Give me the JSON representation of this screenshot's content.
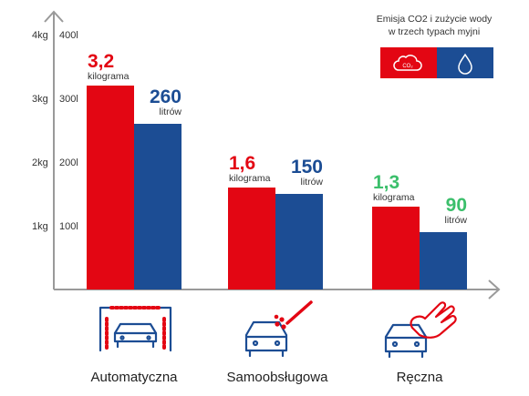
{
  "chart_data": {
    "type": "bar",
    "categories": [
      "Automatyczna",
      "Samoobsługowa",
      "Ręczna"
    ],
    "series": [
      {
        "values": [
          3.2,
          1.6,
          1.3
        ]
      },
      {
        "values": [
          260,
          150,
          90
        ]
      }
    ],
    "value_labels": {
      "co2": [
        "3,2",
        "1,6",
        "1,3"
      ],
      "co2_unit": "kilograma",
      "water": [
        "260",
        "150",
        "90"
      ],
      "water_unit": "litrów"
    },
    "yaxis_left": {
      "ticks": [
        "1kg",
        "2kg",
        "3kg",
        "4kg"
      ],
      "values": [
        1,
        2,
        3,
        4
      ],
      "ylim": [
        0,
        4
      ]
    },
    "yaxis_right": {
      "ticks": [
        "100l",
        "200l",
        "300l",
        "400l"
      ],
      "values": [
        100,
        200,
        300,
        400
      ],
      "ylim": [
        0,
        400
      ]
    },
    "legend": {
      "title_line1": "Emisja CO2 i zużycie wody",
      "title_line2": "w trzech typach myjni",
      "co2_icon_text": "CO₂",
      "placement": "top-right"
    },
    "grid": false,
    "colors": {
      "co2": "#e30613",
      "water": "#1c4d94",
      "axis": "#9a9a9a",
      "accent_green": "#3bbf6b"
    },
    "icons": [
      "car-wash-tunnel-icon",
      "car-pressure-washer-icon",
      "car-hand-wash-icon"
    ]
  }
}
